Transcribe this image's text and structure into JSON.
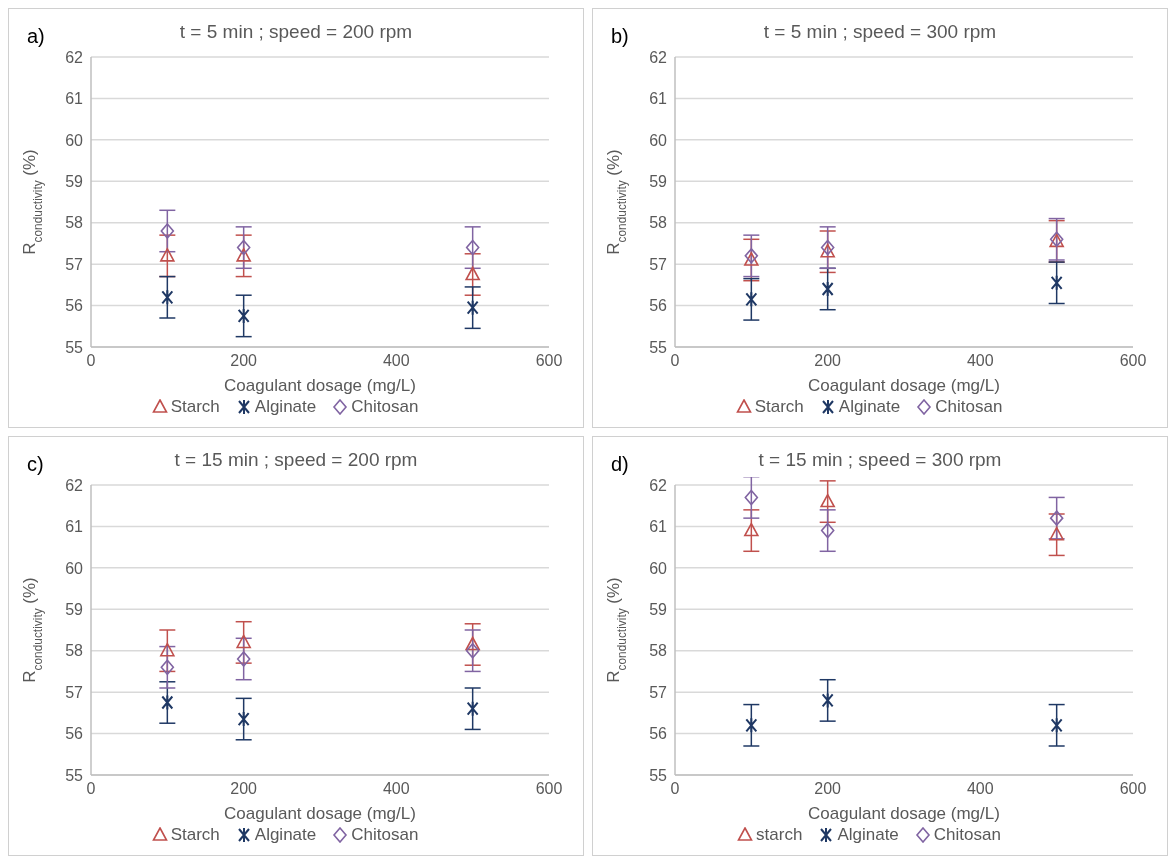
{
  "chart_data": [
    {
      "type": "scatter",
      "title": "t = 5 min ; speed = 200 rpm",
      "annotations": [
        "a)"
      ],
      "xlabel": "Coagulant dosage (mg/L)",
      "ylabel": "R$_{conductivity}$ (%)",
      "x": [
        100,
        200,
        500
      ],
      "xlim": [
        0,
        600
      ],
      "xticks": [
        0,
        200,
        400,
        600
      ],
      "ylim": [
        55,
        62
      ],
      "yticks": [
        55,
        56,
        57,
        58,
        59,
        60,
        61,
        62
      ],
      "grid": "y",
      "legend": "bottom",
      "series": [
        {
          "name": "Starch",
          "color": "#c0504d",
          "marker": "triangle",
          "values": [
            57.2,
            57.2,
            56.75
          ],
          "errors": [
            0.5,
            0.5,
            0.5
          ]
        },
        {
          "name": "Alginate",
          "color": "#1f3864",
          "marker": "cross",
          "values": [
            56.2,
            55.75,
            55.95
          ],
          "errors": [
            0.5,
            0.5,
            0.5
          ]
        },
        {
          "name": "Chitosan",
          "color": "#8064a2",
          "marker": "diamond",
          "values": [
            57.8,
            57.4,
            57.4
          ],
          "errors": [
            0.5,
            0.5,
            0.5
          ]
        }
      ]
    },
    {
      "type": "scatter",
      "title": "t = 5 min ; speed = 300 rpm",
      "annotations": [
        "b)"
      ],
      "xlabel": "Coagulant dosage (mg/L)",
      "ylabel": "R$_{conductivity}$ (%)",
      "x": [
        100,
        200,
        500
      ],
      "xlim": [
        0,
        600
      ],
      "xticks": [
        0,
        200,
        400,
        600
      ],
      "ylim": [
        55,
        62
      ],
      "yticks": [
        55,
        56,
        57,
        58,
        59,
        60,
        61,
        62
      ],
      "grid": "y",
      "legend": "bottom",
      "series": [
        {
          "name": "Starch",
          "color": "#c0504d",
          "marker": "triangle",
          "values": [
            57.1,
            57.3,
            57.55
          ],
          "errors": [
            0.5,
            0.5,
            0.5
          ]
        },
        {
          "name": "Alginate",
          "color": "#1f3864",
          "marker": "cross",
          "values": [
            56.15,
            56.4,
            56.55
          ],
          "errors": [
            0.5,
            0.5,
            0.5
          ]
        },
        {
          "name": "Chitosan",
          "color": "#8064a2",
          "marker": "diamond",
          "values": [
            57.2,
            57.4,
            57.6
          ],
          "errors": [
            0.5,
            0.5,
            0.5
          ]
        }
      ]
    },
    {
      "type": "scatter",
      "title": "t = 15 min ; speed = 200 rpm",
      "annotations": [
        "c)"
      ],
      "xlabel": "Coagulant dosage (mg/L)",
      "ylabel": "R$_{conductivity}$ (%)",
      "x": [
        100,
        200,
        500
      ],
      "xlim": [
        0,
        600
      ],
      "xticks": [
        0,
        200,
        400,
        600
      ],
      "ylim": [
        55,
        62
      ],
      "yticks": [
        55,
        56,
        57,
        58,
        59,
        60,
        61,
        62
      ],
      "grid": "y",
      "legend": "bottom",
      "series": [
        {
          "name": "Starch",
          "color": "#c0504d",
          "marker": "triangle",
          "values": [
            58.0,
            58.2,
            58.15
          ],
          "errors": [
            0.5,
            0.5,
            0.5
          ]
        },
        {
          "name": "Alginate",
          "color": "#1f3864",
          "marker": "cross",
          "values": [
            56.75,
            56.35,
            56.6
          ],
          "errors": [
            0.5,
            0.5,
            0.5
          ]
        },
        {
          "name": "Chitosan",
          "color": "#8064a2",
          "marker": "diamond",
          "values": [
            57.6,
            57.8,
            58.0
          ],
          "errors": [
            0.5,
            0.5,
            0.5
          ]
        }
      ]
    },
    {
      "type": "scatter",
      "title": "t = 15 min ; speed = 300 rpm",
      "annotations": [
        "d)"
      ],
      "xlabel": "Coagulant dosage (mg/L)",
      "ylabel": "R$_{conductivity}$ (%)",
      "x": [
        100,
        200,
        500
      ],
      "xlim": [
        0,
        600
      ],
      "xticks": [
        0,
        200,
        400,
        600
      ],
      "ylim": [
        55,
        62
      ],
      "yticks": [
        55,
        56,
        57,
        58,
        59,
        60,
        61,
        62
      ],
      "grid": "y",
      "legend": "bottom",
      "series": [
        {
          "name": "starch",
          "color": "#c0504d",
          "marker": "triangle",
          "values": [
            60.9,
            61.6,
            60.8
          ],
          "errors": [
            0.5,
            0.5,
            0.5
          ]
        },
        {
          "name": "Alginate",
          "color": "#1f3864",
          "marker": "cross",
          "values": [
            56.2,
            56.8,
            56.2
          ],
          "errors": [
            0.5,
            0.5,
            0.5
          ]
        },
        {
          "name": "Chitosan",
          "color": "#8064a2",
          "marker": "diamond",
          "values": [
            61.7,
            60.9,
            61.2
          ],
          "errors": [
            0.5,
            0.5,
            0.5
          ]
        }
      ]
    }
  ]
}
